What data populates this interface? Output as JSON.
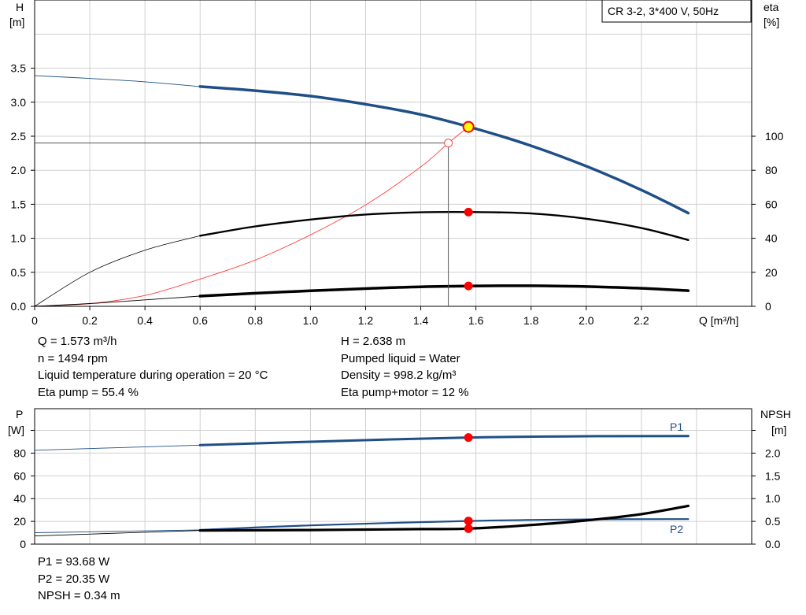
{
  "top_chart": {
    "legend_label": "CR 3-2, 3*400 V, 50Hz",
    "y_left_label_1": "H",
    "y_left_label_2": "[m]",
    "y_right_label_1": "eta",
    "y_right_label_2": "[%]",
    "x_label": "Q [m³/h]"
  },
  "bottom_chart": {
    "y_left_label_1": "P",
    "y_left_label_2": "[W]",
    "y_right_label_1": "NPSH",
    "y_right_label_2": "[m]",
    "p1_label": "P1",
    "p2_label": "P2"
  },
  "info": {
    "left": [
      "Q = 1.573 m³/h",
      "n = 1494 rpm",
      "Liquid temperature during operation = 20 °C",
      "Eta pump = 55.4 %"
    ],
    "right": [
      "H = 2.638 m",
      "Pumped liquid = Water",
      "Density = 998.2 kg/m³",
      "Eta pump+motor = 12 %"
    ],
    "bottom": [
      "P1 = 93.68 W",
      "P2 = 20.35 W",
      "NPSH = 0.34 m"
    ]
  },
  "colors": {
    "head": "#1f4f86",
    "eta": "#000000",
    "system": "#ff4040",
    "duty_point": "#ff0000",
    "grid": "#d0d0d0"
  },
  "chart_data": [
    {
      "type": "line",
      "legend": "CR 3-2, 3*400 V, 50Hz",
      "xlabel": "Q [m³/h]",
      "ylabel": "H [m]",
      "y2label": "eta [%]",
      "xlim": [
        0,
        2.6
      ],
      "ylim": [
        0,
        4.5
      ],
      "y2lim": [
        0,
        180
      ],
      "x_ticks": [
        "0",
        "0.2",
        "0.4",
        "0.6",
        "0.8",
        "1.0",
        "1.2",
        "1.4",
        "1.6",
        "1.8",
        "2.0",
        "2.2"
      ],
      "y_ticks": [
        "0.0",
        "0.5",
        "1.0",
        "1.5",
        "2.0",
        "2.5",
        "3.0",
        "3.5"
      ],
      "y2_ticks": [
        "0",
        "20",
        "40",
        "60",
        "80",
        "100"
      ],
      "grid": true,
      "series": [
        {
          "id": "H",
          "axis": "left",
          "x": [
            0,
            0.2,
            0.4,
            0.6,
            0.8,
            1.0,
            1.2,
            1.4,
            1.6,
            1.8,
            2.0,
            2.2,
            2.37
          ],
          "y": [
            3.39,
            3.35,
            3.3,
            3.23,
            3.17,
            3.09,
            2.97,
            2.82,
            2.61,
            2.36,
            2.06,
            1.71,
            1.37
          ],
          "operating_range": [
            0.6,
            2.37
          ]
        },
        {
          "id": "Eta pump",
          "axis": "right",
          "x": [
            0,
            0.2,
            0.4,
            0.6,
            0.8,
            1.0,
            1.2,
            1.4,
            1.6,
            1.8,
            2.0,
            2.2,
            2.37
          ],
          "y": [
            0,
            20,
            33,
            41.5,
            47,
            51,
            54,
            55.3,
            55.4,
            54.6,
            51.5,
            46,
            39
          ],
          "operating_range": [
            0.6,
            2.37
          ]
        },
        {
          "id": "Eta pump+motor",
          "axis": "right",
          "x": [
            0,
            0.2,
            0.4,
            0.6,
            0.8,
            1.0,
            1.2,
            1.4,
            1.6,
            1.8,
            2.0,
            2.2,
            2.37
          ],
          "y": [
            0,
            1.6,
            3.8,
            6,
            7.7,
            9.1,
            10.4,
            11.5,
            12,
            12.1,
            11.6,
            10.6,
            9.2
          ],
          "operating_range": [
            0.6,
            2.37
          ]
        },
        {
          "id": "System curve",
          "axis": "left",
          "x": [
            0,
            0.2,
            0.4,
            0.6,
            0.8,
            1.0,
            1.2,
            1.4,
            1.5,
            1.573
          ],
          "y": [
            0,
            0.04,
            0.16,
            0.4,
            0.68,
            1.05,
            1.49,
            2.05,
            2.4,
            2.638
          ]
        }
      ],
      "duty_points": [
        {
          "x": 1.573,
          "y": 2.638,
          "axis": "left"
        },
        {
          "x": 1.573,
          "y": 55.4,
          "axis": "right"
        },
        {
          "x": 1.573,
          "y": 12,
          "axis": "right"
        }
      ],
      "reference_point": {
        "x": 1.5,
        "y": 2.4
      }
    },
    {
      "type": "line",
      "ylabel": "P [W]",
      "y2label": "NPSH [m]",
      "xlim": [
        0,
        2.6
      ],
      "ylim": [
        0,
        100
      ],
      "y2lim": [
        0,
        2.5
      ],
      "y_ticks": [
        "0",
        "20",
        "40",
        "60",
        "80"
      ],
      "y2_ticks": [
        "0.0",
        "0.5",
        "1.0",
        "1.5",
        "2.0"
      ],
      "grid": true,
      "series": [
        {
          "name": "P1",
          "axis": "left",
          "x": [
            0,
            0.6,
            1.0,
            1.573,
            2.0,
            2.37
          ],
          "y": [
            82.5,
            87,
            90,
            93.68,
            94.8,
            95
          ],
          "operating_range": [
            0.6,
            2.37
          ]
        },
        {
          "name": "P2",
          "axis": "left",
          "x": [
            0,
            0.6,
            1.0,
            1.573,
            2.0,
            2.37
          ],
          "y": [
            10,
            12.5,
            16.5,
            20.35,
            21.7,
            22
          ],
          "operating_range": [
            0.6,
            2.37
          ]
        },
        {
          "id": "NPSH",
          "axis": "right",
          "x": [
            0,
            0.6,
            1.0,
            1.2,
            1.4,
            1.573,
            1.8,
            2.0,
            2.2,
            2.37
          ],
          "y": [
            0.18,
            0.3,
            0.31,
            0.32,
            0.33,
            0.34,
            0.42,
            0.52,
            0.66,
            0.84
          ],
          "operating_range": [
            0.6,
            2.37
          ]
        }
      ],
      "duty_points": [
        {
          "x": 1.573,
          "y": 93.68,
          "axis": "left"
        },
        {
          "x": 1.573,
          "y": 20.35,
          "axis": "left"
        },
        {
          "x": 1.573,
          "y": 0.34,
          "axis": "right"
        }
      ]
    }
  ]
}
